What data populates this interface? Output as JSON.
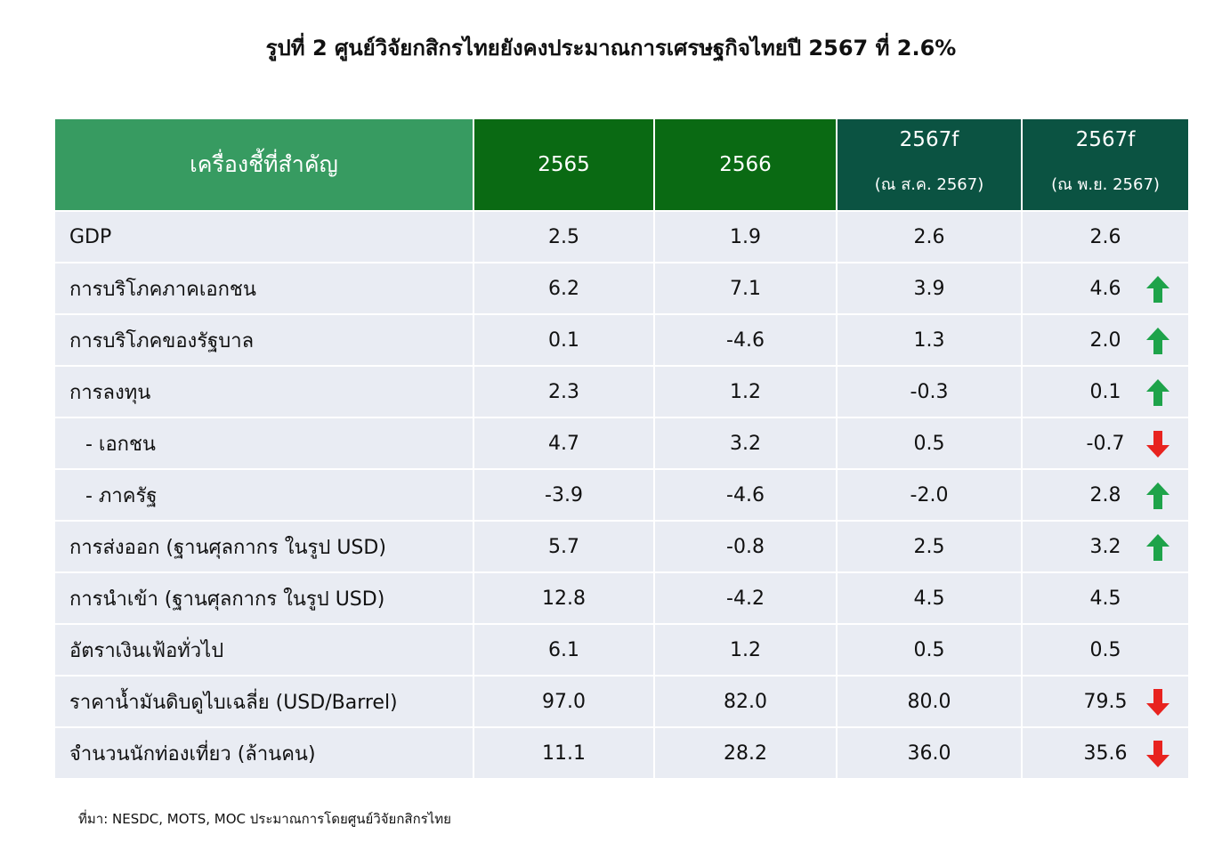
{
  "title": "รูปที่ 2 ศูนย์วิจัยกสิกรไทยยังคงประมาณการเศรษฐกิจไทยปี 2567 ที่ 2.6%",
  "table": {
    "headers": {
      "key": "เครื่องชี้ที่สำคัญ",
      "y2565": "2565",
      "y2566": "2566",
      "f_aug": {
        "year": "2567f",
        "sub": "(ณ ส.ค. 2567)"
      },
      "f_nov": {
        "year": "2567f",
        "sub": "(ณ พ.ย. 2567)"
      }
    },
    "rows": [
      {
        "label": "GDP",
        "v2565": "2.5",
        "v2566": "1.9",
        "f_aug": "2.6",
        "f_nov": "2.6",
        "trend": ""
      },
      {
        "label": "การบริโภคภาคเอกชน",
        "v2565": "6.2",
        "v2566": "7.1",
        "f_aug": "3.9",
        "f_nov": "4.6",
        "trend": "up"
      },
      {
        "label": "การบริโภคของรัฐบาล",
        "v2565": "0.1",
        "v2566": "-4.6",
        "f_aug": "1.3",
        "f_nov": "2.0",
        "trend": "up"
      },
      {
        "label": "การลงทุน",
        "v2565": "2.3",
        "v2566": "1.2",
        "f_aug": "-0.3",
        "f_nov": "0.1",
        "trend": "up"
      },
      {
        "label": "- เอกชน",
        "v2565": "4.7",
        "v2566": "3.2",
        "f_aug": "0.5",
        "f_nov": "-0.7",
        "trend": "down"
      },
      {
        "label": "- ภาครัฐ",
        "v2565": "-3.9",
        "v2566": "-4.6",
        "f_aug": "-2.0",
        "f_nov": "2.8",
        "trend": "up"
      },
      {
        "label": "การส่งออก (ฐานศุลกากร ในรูป USD)",
        "v2565": "5.7",
        "v2566": "-0.8",
        "f_aug": "2.5",
        "f_nov": "3.2",
        "trend": "up"
      },
      {
        "label": "การนำเข้า (ฐานศุลกากร ในรูป USD)",
        "v2565": "12.8",
        "v2566": "-4.2",
        "f_aug": "4.5",
        "f_nov": "4.5",
        "trend": ""
      },
      {
        "label": "อัตราเงินเฟ้อทั่วไป",
        "v2565": "6.1",
        "v2566": "1.2",
        "f_aug": "0.5",
        "f_nov": "0.5",
        "trend": ""
      },
      {
        "label": "ราคาน้ำมันดิบดูไบเฉลี่ย (USD/Barrel)",
        "v2565": "97.0",
        "v2566": "82.0",
        "f_aug": "80.0",
        "f_nov": "79.5",
        "trend": "down"
      },
      {
        "label": "จำนวนนักท่องเที่ยว (ล้านคน)",
        "v2565": "11.1",
        "v2566": "28.2",
        "f_aug": "36.0",
        "f_nov": "35.6",
        "trend": "down"
      }
    ]
  },
  "source": "ที่มา: NESDC, MOTS, MOC ประมาณการโดยศูนย์วิจัยกสิกรไทย",
  "colors": {
    "header_key": "#379b61",
    "header_year": "#0a6a13",
    "header_forecast": "#0b5342",
    "row_bg": "#e9ecf3",
    "arrow_up": "#1ea34a",
    "arrow_down": "#e8231f"
  },
  "icons": {
    "up": "arrow-up-icon",
    "down": "arrow-down-icon"
  }
}
